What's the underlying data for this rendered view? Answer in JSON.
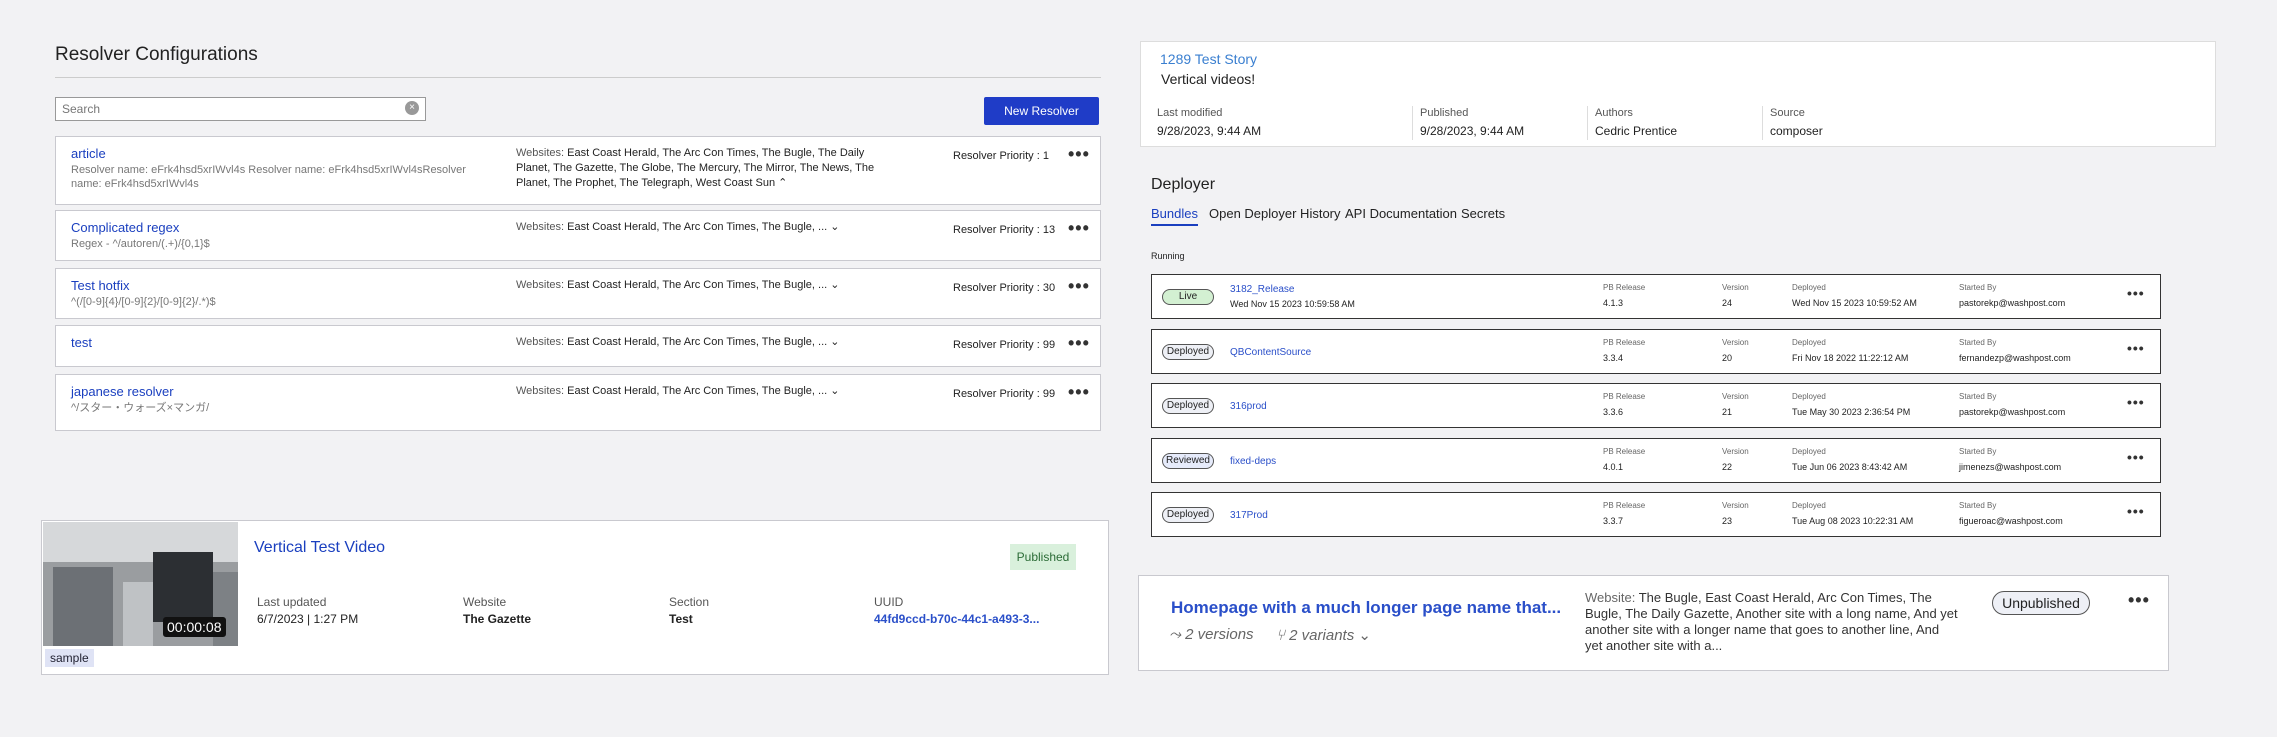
{
  "resolvers": {
    "title": "Resolver Configurations",
    "search_placeholder": "Search",
    "new_button": "New Resolver",
    "websites_label": "Websites:",
    "items": [
      {
        "name": "article",
        "detail": "Resolver name: eFrk4hsd5xrIWvl4s Resolver name: eFrk4hsd5xrIWvl4sResolver name: eFrk4hsd5xrIWvl4s",
        "websites": "East Coast Herald, The Arc Con Times, The Bugle, The Daily Planet, The Gazette, The Globe, The Mercury, The Mirror, The News, The Planet, The Prophet, The Telegraph, West Coast Sun",
        "priority": "Resolver Priority : 1"
      },
      {
        "name": "Complicated regex",
        "detail": "Regex - ^/autoren/(.+)/{0,1}$",
        "websites": "East Coast Herald, The Arc Con Times, The Bugle, ...",
        "priority": "Resolver Priority : 13"
      },
      {
        "name": "Test hotfix",
        "detail": "^(/[0-9]{4}/[0-9]{2}/[0-9]{2}/.*)$",
        "websites": "East Coast Herald, The Arc Con Times, The Bugle, ...",
        "priority": "Resolver Priority : 30"
      },
      {
        "name": "test",
        "websites": "East Coast Herald, The Arc Con Times, The Bugle, ...",
        "priority": "Resolver Priority : 99"
      },
      {
        "name": "japanese resolver",
        "detail": "^/スター・ウォーズ×マンガ/",
        "websites": "East Coast Herald, The Arc Con Times, The Bugle, ...",
        "priority": "Resolver Priority : 99"
      }
    ]
  },
  "video": {
    "title": "Vertical Test Video",
    "status": "Published",
    "duration": "00:00:08",
    "tag": "sample",
    "fields": [
      {
        "label": "Last updated",
        "value": "6/7/2023 | 1:27 PM"
      },
      {
        "label": "Website",
        "value": "The Gazette"
      },
      {
        "label": "Section",
        "value": "Test"
      },
      {
        "label": "UUID",
        "value": "44fd9ccd-b70c-44c1-a493-3..."
      }
    ]
  },
  "story": {
    "title": "1289 Test Story",
    "subtitle": "Vertical videos!",
    "fields": [
      {
        "label": "Last modified",
        "value": "9/28/2023, 9:44 AM"
      },
      {
        "label": "Published",
        "value": "9/28/2023, 9:44 AM"
      },
      {
        "label": "Authors",
        "value": "Cedric Prentice"
      },
      {
        "label": "Source",
        "value": "composer"
      }
    ]
  },
  "deployer": {
    "title": "Deployer",
    "tabs": [
      "Bundles",
      "Open Deployer History",
      "API Documentation",
      "Secrets"
    ],
    "section": "Running",
    "column_labels": {
      "pb_release": "PB Release",
      "version": "Version",
      "deployed": "Deployed",
      "started_by": "Started By"
    },
    "bundles": [
      {
        "status": "Live",
        "name": "3182_Release",
        "created": "Wed Nov 15 2023 10:59:58 AM",
        "pb_release": "4.1.3",
        "version": "24",
        "deployed": "Wed Nov 15 2023 10:59:52 AM",
        "started_by": "pastorekp@washpost.com"
      },
      {
        "status": "Deployed",
        "name": "QBContentSource",
        "pb_release": "3.3.4",
        "version": "20",
        "deployed": "Fri Nov 18 2022 11:22:12 AM",
        "started_by": "fernandezp@washpost.com"
      },
      {
        "status": "Deployed",
        "name": "316prod",
        "pb_release": "3.3.6",
        "version": "21",
        "deployed": "Tue May 30 2023 2:36:54 PM",
        "started_by": "pastorekp@washpost.com"
      },
      {
        "status": "Reviewed",
        "name": "fixed-deps",
        "pb_release": "4.0.1",
        "version": "22",
        "deployed": "Tue Jun 06 2023 8:43:42 AM",
        "started_by": "jimenezs@washpost.com"
      },
      {
        "status": "Deployed",
        "name": "317Prod",
        "pb_release": "3.3.7",
        "version": "23",
        "deployed": "Tue Aug 08 2023 10:22:31 AM",
        "started_by": "figueroac@washpost.com"
      }
    ]
  },
  "page": {
    "title": "Homepage with a much longer page name that...",
    "versions": "2 versions",
    "variants": "2 variants",
    "website_label": "Website:",
    "websites": "The Bugle, East Coast Herald, Arc Con Times, The Bugle, The Daily Gazette, Another site with a long name, And yet another site with a longer name that goes to another line, And yet another site with a...",
    "status": "Unpublished"
  }
}
